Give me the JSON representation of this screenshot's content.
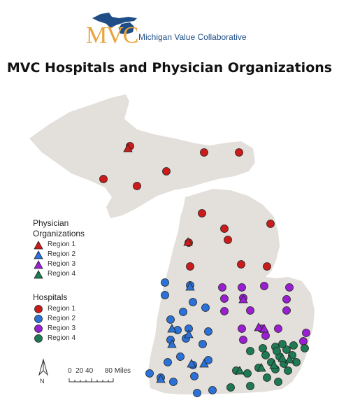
{
  "logo": {
    "mark": "MVC",
    "tagline": "Michigan Value Collaborative"
  },
  "title": "MVC Hospitals and Physician Organizations",
  "legend": {
    "po_title_line1": "Physician",
    "po_title_line2": "Organizations",
    "hosp_title": "Hospitals",
    "regions": [
      {
        "label": "Region 1",
        "color": "#cc1b1b"
      },
      {
        "label": "Region 2",
        "color": "#2a72d8"
      },
      {
        "label": "Region 3",
        "color": "#9a1fd2"
      },
      {
        "label": "Region 4",
        "color": "#1e7a52"
      }
    ]
  },
  "scale": {
    "label": "0  20 40      80 Miles"
  },
  "north": {
    "label": "N"
  },
  "colors": {
    "land": "#e3dfdb",
    "marker_stroke": "#222222"
  }
}
